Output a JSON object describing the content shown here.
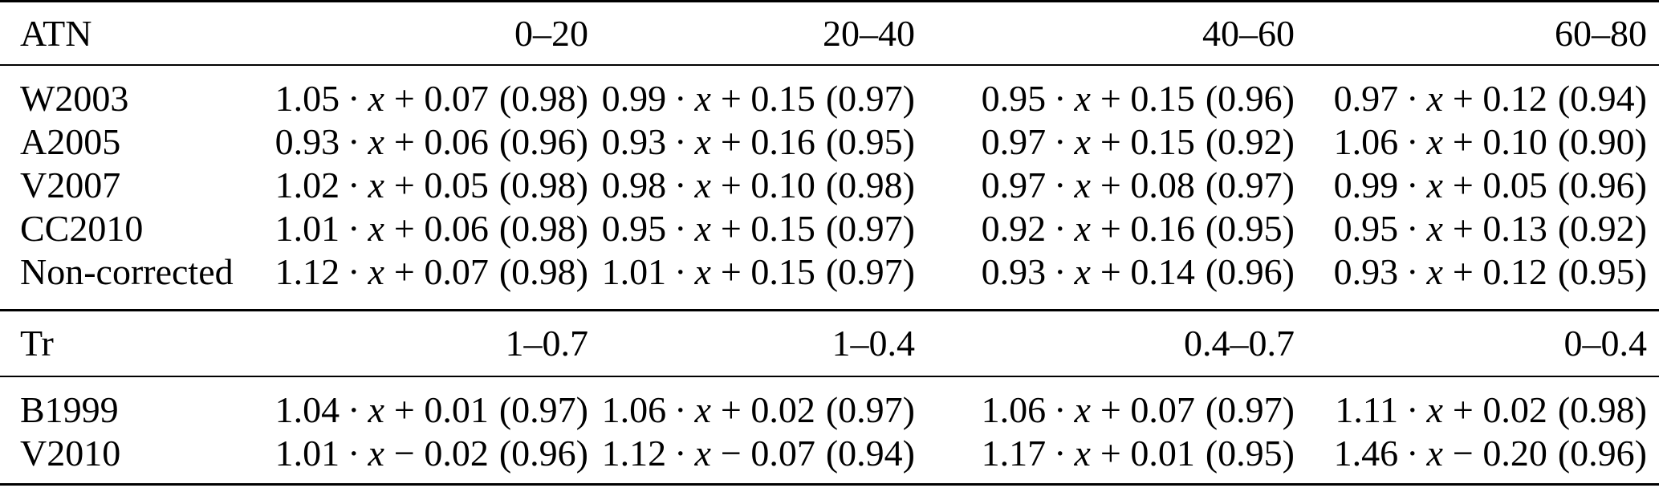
{
  "colors": {
    "background": "#ffffff",
    "text": "#000000",
    "rule": "#000000"
  },
  "math": {
    "dot": "·",
    "x": "x"
  },
  "table": {
    "sections": [
      {
        "header": {
          "label": "ATN",
          "cols": [
            "0–20",
            "20–40",
            "40–60",
            "60–80"
          ]
        },
        "rows": [
          {
            "label": "W2003",
            "cells": [
              {
                "pre": "1.05",
                "post": "+ 0.07",
                "r": "(0.98)"
              },
              {
                "pre": "0.99",
                "post": "+ 0.15",
                "r": "(0.97)"
              },
              {
                "pre": "0.95",
                "post": "+ 0.15",
                "r": "(0.96)"
              },
              {
                "pre": "0.97",
                "post": "+ 0.12",
                "r": "(0.94)"
              }
            ]
          },
          {
            "label": "A2005",
            "cells": [
              {
                "pre": "0.93",
                "post": "+ 0.06",
                "r": "(0.96)"
              },
              {
                "pre": "0.93",
                "post": "+ 0.16",
                "r": "(0.95)"
              },
              {
                "pre": "0.97",
                "post": "+ 0.15",
                "r": "(0.92)"
              },
              {
                "pre": "1.06",
                "post": "+ 0.10",
                "r": "(0.90)"
              }
            ]
          },
          {
            "label": "V2007",
            "cells": [
              {
                "pre": "1.02",
                "post": "+ 0.05",
                "r": "(0.98)"
              },
              {
                "pre": "0.98",
                "post": "+ 0.10",
                "r": "(0.98)"
              },
              {
                "pre": "0.97",
                "post": "+ 0.08",
                "r": "(0.97)"
              },
              {
                "pre": "0.99",
                "post": "+ 0.05",
                "r": "(0.96)"
              }
            ]
          },
          {
            "label": "CC2010",
            "cells": [
              {
                "pre": "1.01",
                "post": "+ 0.06",
                "r": "(0.98)"
              },
              {
                "pre": "0.95",
                "post": "+ 0.15",
                "r": "(0.97)"
              },
              {
                "pre": "0.92",
                "post": "+ 0.16",
                "r": "(0.95)"
              },
              {
                "pre": "0.95",
                "post": "+ 0.13",
                "r": "(0.92)"
              }
            ]
          },
          {
            "label": "Non-corrected",
            "cells": [
              {
                "pre": "1.12",
                "post": "+ 0.07",
                "r": "(0.98)"
              },
              {
                "pre": "1.01",
                "post": "+ 0.15",
                "r": "(0.97)"
              },
              {
                "pre": "0.93",
                "post": "+ 0.14",
                "r": "(0.96)"
              },
              {
                "pre": "0.93",
                "post": "+ 0.12",
                "r": "(0.95)"
              }
            ]
          }
        ]
      },
      {
        "header": {
          "label": "Tr",
          "cols": [
            "1–0.7",
            "1–0.4",
            "0.4–0.7",
            "0–0.4"
          ]
        },
        "rows": [
          {
            "label": "B1999",
            "cells": [
              {
                "pre": "1.04",
                "post": "+ 0.01",
                "r": "(0.97)"
              },
              {
                "pre": "1.06",
                "post": "+ 0.02",
                "r": "(0.97)"
              },
              {
                "pre": "1.06",
                "post": "+ 0.07",
                "r": "(0.97)"
              },
              {
                "pre": "1.11",
                "post": "+ 0.02",
                "r": "(0.98)"
              }
            ]
          },
          {
            "label": "V2010",
            "cells": [
              {
                "pre": "1.01",
                "post": "− 0.02",
                "r": "(0.96)"
              },
              {
                "pre": "1.12",
                "post": "− 0.07",
                "r": "(0.94)"
              },
              {
                "pre": "1.17",
                "post": "+ 0.01",
                "r": "(0.95)"
              },
              {
                "pre": "1.46",
                "post": "− 0.20",
                "r": "(0.96)"
              }
            ]
          }
        ]
      }
    ]
  }
}
